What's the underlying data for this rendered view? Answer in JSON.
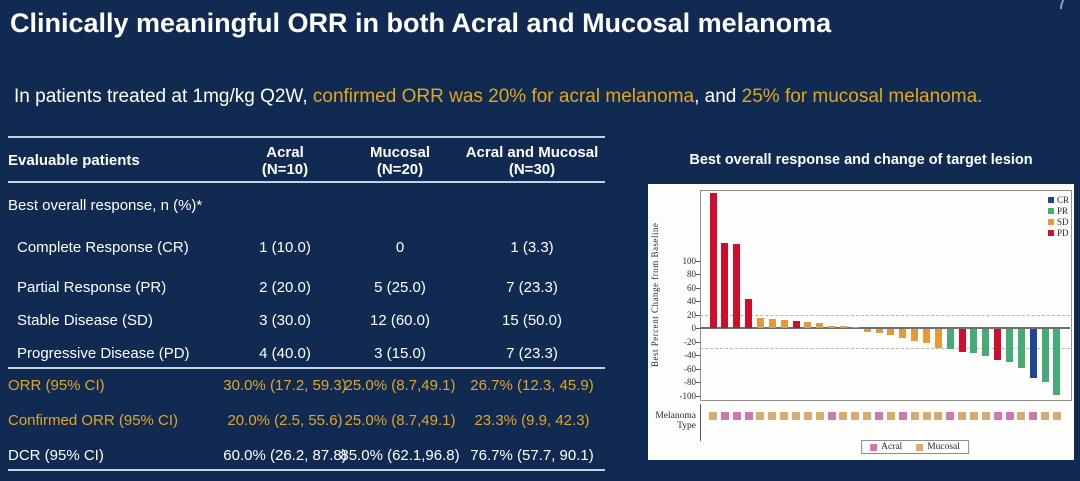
{
  "page_number": "7",
  "title": "Clinically meaningful ORR in both Acral and Mucosal melanoma",
  "subtitle": {
    "part1": "In patients treated at 1mg/kg Q2W, ",
    "part2": "confirmed ORR was 20% for acral melanoma",
    "part3": ", and ",
    "part4": "25% for mucosal melanoma."
  },
  "table": {
    "headers": [
      {
        "line1": "Evaluable patients",
        "line2": ""
      },
      {
        "line1": "Acral",
        "line2": "(N=10)"
      },
      {
        "line1": "Mucosal",
        "line2": "(N=20)"
      },
      {
        "line1": "Acral and Mucosal",
        "line2": "(N=30)"
      }
    ],
    "rows": [
      {
        "label": "Best overall response, n (%)*",
        "values": [
          "",
          "",
          ""
        ],
        "indent": false,
        "color": "white"
      },
      {
        "label": "Complete Response (CR)",
        "values": [
          "1 (10.0)",
          "0",
          "1 (3.3)"
        ],
        "indent": true,
        "color": "white"
      },
      {
        "label": "Partial Response (PR)",
        "values": [
          "2 (20.0)",
          "5 (25.0)",
          "7 (23.3)"
        ],
        "indent": true,
        "color": "white"
      },
      {
        "label": "Stable Disease (SD)",
        "values": [
          "3 (30.0)",
          "12 (60.0)",
          "15 (50.0)"
        ],
        "indent": true,
        "color": "white"
      },
      {
        "label": "Progressive Disease (PD)",
        "values": [
          "4 (40.0)",
          "3 (15.0)",
          "7 (23.3)"
        ],
        "indent": true,
        "color": "white"
      },
      {
        "label": "ORR (95% CI)",
        "values": [
          "30.0% (17.2, 59.3)",
          "25.0% (8.7,49.1)",
          "26.7% (12.3, 45.9)"
        ],
        "indent": false,
        "color": "yellow"
      },
      {
        "label": "Confirmed ORR (95% CI)",
        "values": [
          "20.0% (2.5, 55.6)",
          "25.0% (8.7,49.1)",
          "23.3% (9.9, 42.3)"
        ],
        "indent": false,
        "color": "yellow"
      },
      {
        "label": "DCR (95% CI)",
        "values": [
          "60.0% (26.2, 87.8)",
          "85.0% (62.1,96.8)",
          "76.7% (57.7, 90.1)"
        ],
        "indent": false,
        "color": "white"
      }
    ]
  },
  "chart_data": {
    "type": "bar",
    "title": "Best overall response and change of target lesion",
    "ylabel": "Best Percent Change from Baseline",
    "yticks": [
      100,
      80,
      60,
      40,
      20,
      0,
      -20,
      -40,
      -60,
      -80,
      -100
    ],
    "ylim": [
      -105,
      205
    ],
    "reference_lines": [
      20,
      -30
    ],
    "grid": false,
    "legend_top_position": "inside-top-right",
    "legend_top": [
      "CR",
      "PR",
      "SD",
      "PD"
    ],
    "legend_bottom": [
      "Acral",
      "Mucosal"
    ],
    "melanoma_axis_label": "Melanoma Type",
    "response_colors": {
      "CR": "#1d4795",
      "PR": "#47ab77",
      "SD": "#e29b38",
      "PD": "#ce0e2d"
    },
    "melanoma_colors": {
      "Acral": "#d277ad",
      "Mucosal": "#d5ac74"
    },
    "bars": [
      {
        "value": 200,
        "response": "PD",
        "melanoma": "Mucosal"
      },
      {
        "value": 127,
        "response": "PD",
        "melanoma": "Acral"
      },
      {
        "value": 125,
        "response": "PD",
        "melanoma": "Acral"
      },
      {
        "value": 44,
        "response": "PD",
        "melanoma": "Acral"
      },
      {
        "value": 15,
        "response": "SD",
        "melanoma": "Mucosal"
      },
      {
        "value": 14,
        "response": "SD",
        "melanoma": "Mucosal"
      },
      {
        "value": 12,
        "response": "SD",
        "melanoma": "Mucosal"
      },
      {
        "value": 10,
        "response": "PD",
        "melanoma": "Mucosal"
      },
      {
        "value": 9,
        "response": "SD",
        "melanoma": "Mucosal"
      },
      {
        "value": 8,
        "response": "SD",
        "melanoma": "Mucosal"
      },
      {
        "value": 4,
        "response": "SD",
        "melanoma": "Acral"
      },
      {
        "value": 3,
        "response": "SD",
        "melanoma": "Mucosal"
      },
      {
        "value": 2,
        "response": "SD",
        "melanoma": "Mucosal"
      },
      {
        "value": -4,
        "response": "SD",
        "melanoma": "Mucosal"
      },
      {
        "value": -6,
        "response": "SD",
        "melanoma": "Acral"
      },
      {
        "value": -8,
        "response": "SD",
        "melanoma": "Mucosal"
      },
      {
        "value": -13,
        "response": "SD",
        "melanoma": "Acral"
      },
      {
        "value": -17,
        "response": "SD",
        "melanoma": "Mucosal"
      },
      {
        "value": -21,
        "response": "SD",
        "melanoma": "Mucosal"
      },
      {
        "value": -28,
        "response": "SD",
        "melanoma": "Mucosal"
      },
      {
        "value": -30,
        "response": "PR",
        "melanoma": "Acral"
      },
      {
        "value": -34,
        "response": "PD",
        "melanoma": "Mucosal"
      },
      {
        "value": -36,
        "response": "PR",
        "melanoma": "Mucosal"
      },
      {
        "value": -40,
        "response": "PR",
        "melanoma": "Mucosal"
      },
      {
        "value": -45,
        "response": "PD",
        "melanoma": "Acral"
      },
      {
        "value": -48,
        "response": "PR",
        "melanoma": "Acral"
      },
      {
        "value": -57,
        "response": "PR",
        "melanoma": "Mucosal"
      },
      {
        "value": -72,
        "response": "CR",
        "melanoma": "Acral"
      },
      {
        "value": -79,
        "response": "PR",
        "melanoma": "Mucosal"
      },
      {
        "value": -97,
        "response": "PR",
        "melanoma": "Mucosal"
      }
    ]
  }
}
